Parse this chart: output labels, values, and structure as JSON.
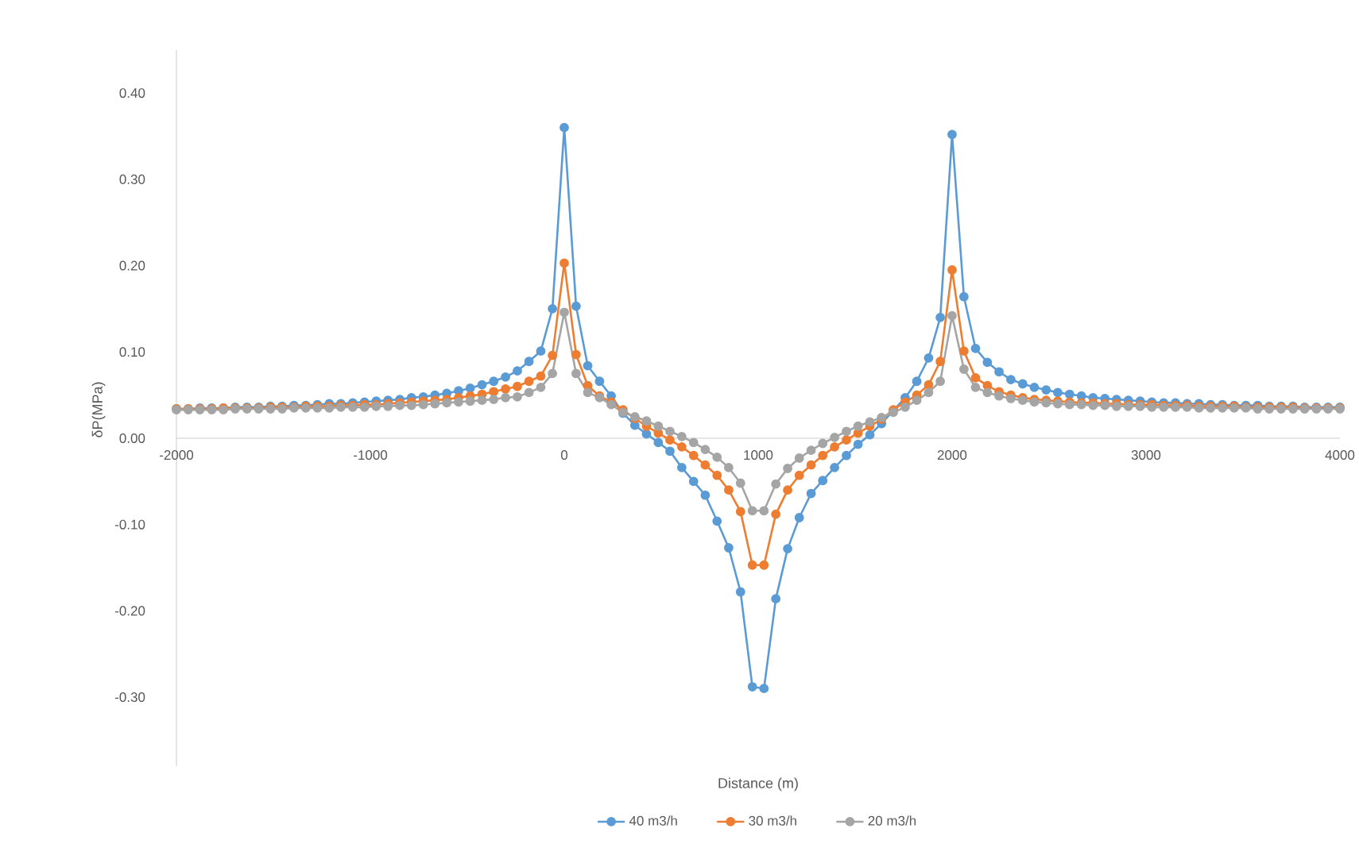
{
  "chart_data": {
    "type": "line",
    "xlabel": "Distance (m)",
    "ylabel": "δP(MPa)",
    "xlim": [
      -2000,
      4000
    ],
    "xticks": [
      -2000,
      -1000,
      0,
      1000,
      2000,
      3000,
      4000
    ],
    "ylim": [
      -0.38,
      0.45
    ],
    "yticks": [
      {
        "value": -0.3,
        "label": "-0.30"
      },
      {
        "value": -0.2,
        "label": "-0.20"
      },
      {
        "value": -0.1,
        "label": "-0.10"
      },
      {
        "value": 0,
        "label": "0.00"
      },
      {
        "value": 0.1,
        "label": "0.10"
      },
      {
        "value": 0.2,
        "label": "0.20"
      },
      {
        "value": 0.3,
        "label": "0.30"
      },
      {
        "value": 0.4,
        "label": "0.40"
      }
    ],
    "legend": "bottom",
    "marker": "circle",
    "line_style": "solid",
    "x": [
      -2000,
      -1939,
      -1879,
      -1818,
      -1758,
      -1697,
      -1636,
      -1576,
      -1515,
      -1455,
      -1394,
      -1333,
      -1273,
      -1212,
      -1152,
      -1091,
      -1030,
      -970,
      -909,
      -848,
      -788,
      -727,
      -667,
      -606,
      -545,
      -485,
      -424,
      -364,
      -303,
      -242,
      -182,
      -121,
      -61,
      0,
      61,
      121,
      182,
      242,
      303,
      364,
      424,
      485,
      545,
      606,
      667,
      727,
      788,
      848,
      909,
      970,
      1030,
      1091,
      1152,
      1212,
      1273,
      1333,
      1394,
      1455,
      1515,
      1576,
      1636,
      1697,
      1758,
      1818,
      1879,
      1939,
      2000,
      2061,
      2121,
      2182,
      2242,
      2303,
      2364,
      2424,
      2485,
      2545,
      2606,
      2667,
      2727,
      2788,
      2848,
      2909,
      2970,
      3030,
      3091,
      3152,
      3212,
      3273,
      3333,
      3394,
      3455,
      3515,
      3576,
      3636,
      3697,
      3758,
      3818,
      3879,
      3939,
      4000
    ],
    "series": [
      {
        "name": "40 m3/h",
        "color": "#5b9bd5",
        "values": [
          0.034,
          0.034,
          0.035,
          0.035,
          0.035,
          0.036,
          0.036,
          0.036,
          0.037,
          0.037,
          0.038,
          0.038,
          0.039,
          0.04,
          0.04,
          0.041,
          0.042,
          0.043,
          0.044,
          0.045,
          0.047,
          0.048,
          0.05,
          0.052,
          0.055,
          0.058,
          0.062,
          0.066,
          0.071,
          0.078,
          0.089,
          0.101,
          0.15,
          0.36,
          0.153,
          0.084,
          0.066,
          0.049,
          0.029,
          0.015,
          0.005,
          -0.005,
          -0.015,
          -0.034,
          -0.05,
          -0.066,
          -0.096,
          -0.127,
          -0.178,
          -0.288,
          -0.29,
          -0.186,
          -0.128,
          -0.092,
          -0.064,
          -0.049,
          -0.034,
          -0.02,
          -0.007,
          0.004,
          0.017,
          0.032,
          0.047,
          0.066,
          0.093,
          0.14,
          0.352,
          0.164,
          0.104,
          0.088,
          0.077,
          0.068,
          0.063,
          0.059,
          0.056,
          0.053,
          0.051,
          0.049,
          0.047,
          0.046,
          0.045,
          0.044,
          0.043,
          0.042,
          0.041,
          0.041,
          0.04,
          0.04,
          0.039,
          0.039,
          0.038,
          0.038,
          0.038,
          0.037,
          0.037,
          0.037,
          0.036,
          0.036,
          0.036,
          0.036
        ]
      },
      {
        "name": "30 m3/h",
        "color": "#ed7d31",
        "values": [
          0.034,
          0.034,
          0.034,
          0.034,
          0.035,
          0.035,
          0.035,
          0.035,
          0.036,
          0.036,
          0.036,
          0.037,
          0.037,
          0.037,
          0.038,
          0.038,
          0.039,
          0.039,
          0.04,
          0.041,
          0.042,
          0.043,
          0.044,
          0.045,
          0.047,
          0.049,
          0.051,
          0.054,
          0.057,
          0.06,
          0.066,
          0.072,
          0.096,
          0.203,
          0.097,
          0.061,
          0.049,
          0.042,
          0.033,
          0.023,
          0.014,
          0.006,
          -0.002,
          -0.01,
          -0.02,
          -0.031,
          -0.043,
          -0.06,
          -0.085,
          -0.147,
          -0.147,
          -0.088,
          -0.06,
          -0.043,
          -0.031,
          -0.02,
          -0.01,
          -0.002,
          0.006,
          0.014,
          0.022,
          0.033,
          0.042,
          0.05,
          0.062,
          0.089,
          0.195,
          0.101,
          0.07,
          0.061,
          0.054,
          0.05,
          0.047,
          0.045,
          0.044,
          0.043,
          0.042,
          0.041,
          0.041,
          0.04,
          0.04,
          0.039,
          0.039,
          0.039,
          0.038,
          0.038,
          0.038,
          0.037,
          0.037,
          0.037,
          0.037,
          0.036,
          0.036,
          0.036,
          0.036,
          0.036,
          0.035,
          0.035,
          0.035,
          0.035
        ]
      },
      {
        "name": "20 m3/h",
        "color": "#a5a5a5",
        "values": [
          0.033,
          0.033,
          0.033,
          0.033,
          0.033,
          0.034,
          0.034,
          0.034,
          0.034,
          0.034,
          0.035,
          0.035,
          0.035,
          0.035,
          0.036,
          0.036,
          0.036,
          0.037,
          0.037,
          0.038,
          0.038,
          0.039,
          0.04,
          0.041,
          0.042,
          0.043,
          0.044,
          0.045,
          0.047,
          0.048,
          0.053,
          0.059,
          0.075,
          0.146,
          0.075,
          0.053,
          0.047,
          0.039,
          0.03,
          0.025,
          0.02,
          0.014,
          0.008,
          0.002,
          -0.005,
          -0.013,
          -0.022,
          -0.034,
          -0.052,
          -0.084,
          -0.084,
          -0.053,
          -0.035,
          -0.023,
          -0.014,
          -0.006,
          0.001,
          0.008,
          0.014,
          0.019,
          0.024,
          0.03,
          0.036,
          0.044,
          0.053,
          0.066,
          0.142,
          0.08,
          0.059,
          0.053,
          0.049,
          0.046,
          0.044,
          0.042,
          0.041,
          0.04,
          0.039,
          0.039,
          0.038,
          0.038,
          0.037,
          0.037,
          0.037,
          0.036,
          0.036,
          0.036,
          0.036,
          0.035,
          0.035,
          0.035,
          0.035,
          0.035,
          0.034,
          0.034,
          0.034,
          0.034,
          0.034,
          0.034,
          0.034,
          0.034
        ]
      }
    ]
  }
}
